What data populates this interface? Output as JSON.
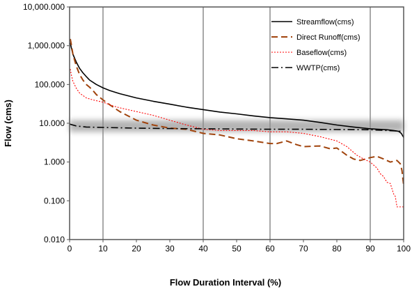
{
  "chart_data": {
    "type": "line",
    "title": "",
    "xlabel": "Flow Duration Interval (%)",
    "ylabel": "Flow (cms)",
    "xlim": [
      0,
      100
    ],
    "ylim": [
      0.01,
      10000
    ],
    "yscale": "log",
    "x_ticks": [
      0,
      10,
      20,
      30,
      40,
      50,
      60,
      70,
      80,
      90,
      100
    ],
    "x_tick_labels": [
      "0",
      "10",
      "20",
      "30",
      "40",
      "50",
      "60",
      "70",
      "80",
      "90",
      "100"
    ],
    "y_ticks": [
      0.01,
      0.1,
      1,
      10,
      100,
      1000,
      10000
    ],
    "y_tick_labels": [
      "0.010",
      "0.100",
      "1.000",
      "10.000",
      "100.000",
      "1,000.000",
      "10,000.000"
    ],
    "vertical_gridlines_at": [
      10,
      40,
      60,
      90
    ],
    "grid": "vertical lines at 10, 40, 60, 90",
    "legend_position": "top-right",
    "highlight_band": {
      "y_low": 6.0,
      "y_high": 12.0,
      "style": "blurred gray band"
    },
    "series": [
      {
        "name": "Streamflow(cms)",
        "color": "#000000",
        "style": "solid",
        "points": [
          [
            0.2,
            1200
          ],
          [
            0.5,
            900
          ],
          [
            1,
            600
          ],
          [
            2,
            380
          ],
          [
            3,
            260
          ],
          [
            4,
            200
          ],
          [
            5,
            160
          ],
          [
            6,
            130
          ],
          [
            8,
            100
          ],
          [
            10,
            82
          ],
          [
            12,
            70
          ],
          [
            15,
            58
          ],
          [
            20,
            45
          ],
          [
            25,
            37
          ],
          [
            30,
            31
          ],
          [
            35,
            26
          ],
          [
            40,
            22.5
          ],
          [
            45,
            19.5
          ],
          [
            50,
            17.5
          ],
          [
            55,
            15.5
          ],
          [
            60,
            14
          ],
          [
            65,
            13
          ],
          [
            70,
            12
          ],
          [
            75,
            10.5
          ],
          [
            80,
            9
          ],
          [
            85,
            8
          ],
          [
            90,
            7.2
          ],
          [
            95,
            6.8
          ],
          [
            97,
            6.5
          ],
          [
            98.5,
            6.2
          ],
          [
            99.3,
            5.5
          ],
          [
            100,
            4.3
          ]
        ]
      },
      {
        "name": "Direct  Runoff(cms)",
        "color": "#a0430c",
        "style": "dashed",
        "points": [
          [
            0.2,
            1500
          ],
          [
            0.5,
            1100
          ],
          [
            1,
            600
          ],
          [
            2,
            300
          ],
          [
            3,
            180
          ],
          [
            4,
            130
          ],
          [
            5,
            100
          ],
          [
            6,
            85
          ],
          [
            7,
            70
          ],
          [
            8,
            55
          ],
          [
            10,
            40
          ],
          [
            12,
            30
          ],
          [
            15,
            20
          ],
          [
            20,
            12
          ],
          [
            25,
            9
          ],
          [
            30,
            7.5
          ],
          [
            35,
            7
          ],
          [
            40,
            5.5
          ],
          [
            45,
            5
          ],
          [
            50,
            4
          ],
          [
            55,
            3.5
          ],
          [
            60,
            3
          ],
          [
            62,
            3
          ],
          [
            65,
            3.5
          ],
          [
            68,
            2.8
          ],
          [
            70,
            2.5
          ],
          [
            75,
            2.6
          ],
          [
            78,
            2.2
          ],
          [
            80,
            2.3
          ],
          [
            83,
            1.5
          ],
          [
            85,
            1.2
          ],
          [
            87,
            1.1
          ],
          [
            90,
            1.3
          ],
          [
            92,
            1.4
          ],
          [
            94,
            1.2
          ],
          [
            96,
            1.0
          ],
          [
            98,
            1.1
          ],
          [
            99,
            0.9
          ],
          [
            99.5,
            0.6
          ],
          [
            100,
            0.25
          ]
        ]
      },
      {
        "name": "Baseflow(cms)",
        "color": "#ff0000",
        "style": "dotted",
        "points": [
          [
            0.2,
            250
          ],
          [
            0.5,
            180
          ],
          [
            1,
            120
          ],
          [
            2,
            80
          ],
          [
            3,
            60
          ],
          [
            5,
            45
          ],
          [
            7,
            40
          ],
          [
            10,
            35
          ],
          [
            13,
            28
          ],
          [
            15,
            25
          ],
          [
            20,
            20
          ],
          [
            25,
            16
          ],
          [
            30,
            12
          ],
          [
            35,
            9
          ],
          [
            40,
            7
          ],
          [
            45,
            6.5
          ],
          [
            50,
            6.5
          ],
          [
            55,
            6.5
          ],
          [
            60,
            6
          ],
          [
            65,
            6
          ],
          [
            70,
            5.5
          ],
          [
            75,
            4.5
          ],
          [
            80,
            3.5
          ],
          [
            83,
            2.5
          ],
          [
            86,
            1.5
          ],
          [
            88,
            1.2
          ],
          [
            90,
            1.0
          ],
          [
            92,
            0.7
          ],
          [
            93,
            0.5
          ],
          [
            94,
            0.42
          ],
          [
            95,
            0.3
          ],
          [
            96,
            0.28
          ],
          [
            97,
            0.15
          ],
          [
            97.5,
            0.13
          ],
          [
            98,
            0.07
          ],
          [
            99,
            0.07
          ],
          [
            100,
            0.07
          ]
        ]
      },
      {
        "name": "WWTP(cms)",
        "color": "#000000",
        "style": "dash-dot",
        "points": [
          [
            0,
            9.5
          ],
          [
            2,
            8.5
          ],
          [
            5,
            8
          ],
          [
            10,
            7.8
          ],
          [
            20,
            7.5
          ],
          [
            30,
            7.3
          ],
          [
            40,
            7.2
          ],
          [
            50,
            7.1
          ],
          [
            60,
            7
          ],
          [
            70,
            7
          ],
          [
            80,
            6.9
          ],
          [
            90,
            6.8
          ],
          [
            95,
            6.5
          ],
          [
            100,
            6.2
          ]
        ]
      }
    ]
  }
}
